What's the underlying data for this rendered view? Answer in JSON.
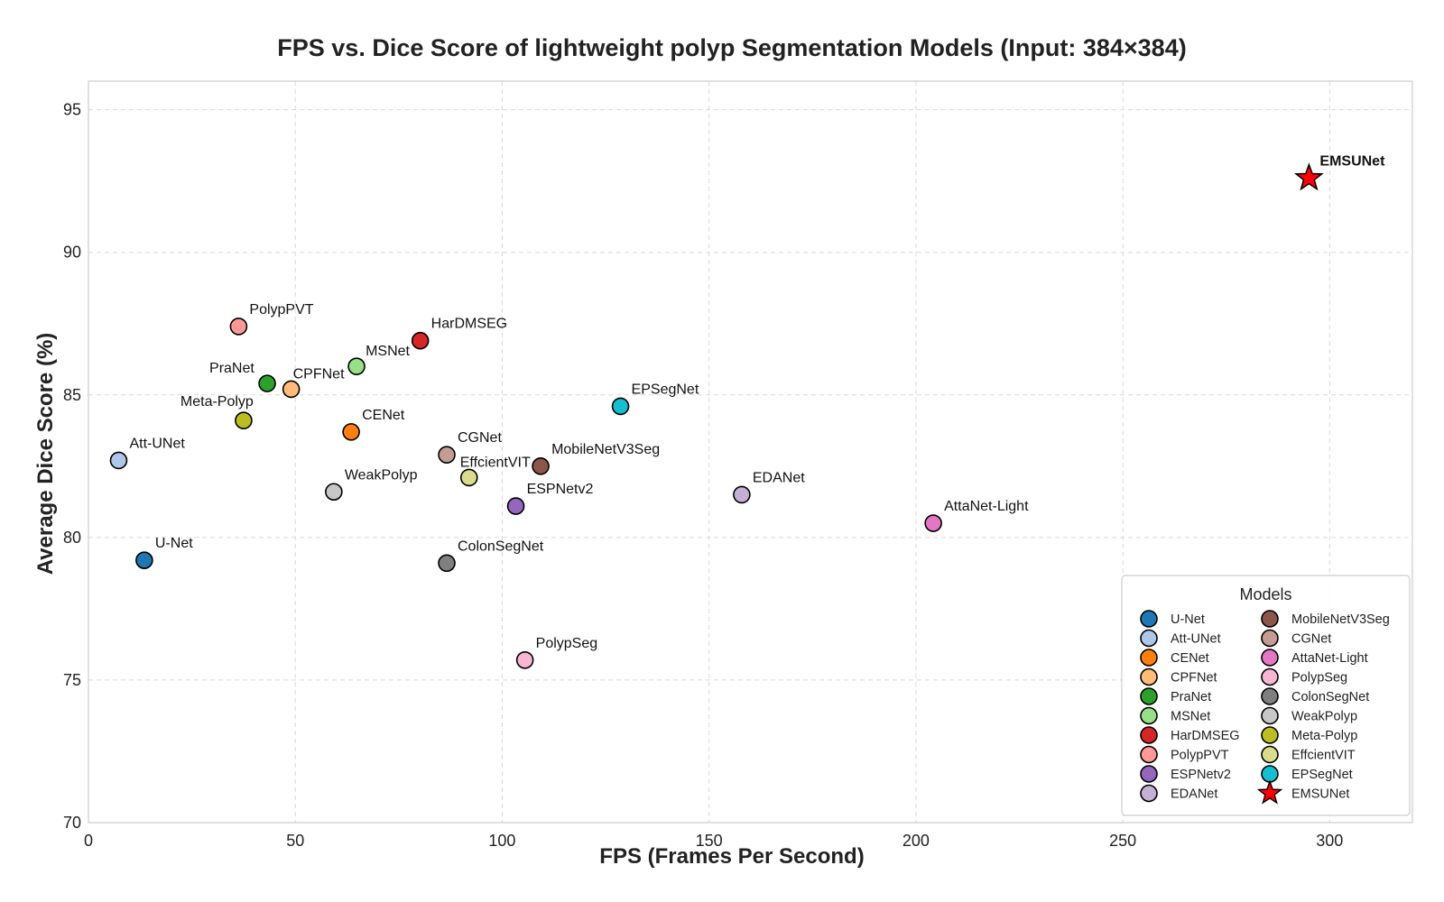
{
  "chart_data": {
    "type": "scatter",
    "title": "FPS vs. Dice Score of lightweight polyp Segmentation Models (Input: 384×384)",
    "xlabel": "FPS (Frames Per Second)",
    "ylabel": "Average Dice Score (%)",
    "xlim": [
      0,
      320
    ],
    "ylim": [
      70,
      96
    ],
    "xticks": [
      0,
      50,
      100,
      150,
      200,
      250,
      300
    ],
    "yticks": [
      70,
      75,
      80,
      85,
      90,
      95
    ],
    "grid": true,
    "legend": {
      "title": "Models",
      "position": "bottom-right",
      "columns": 2
    },
    "series": [
      {
        "name": "U-Net",
        "x": 13.5,
        "y": 79.2,
        "color": "#1f77b4",
        "marker": "circle"
      },
      {
        "name": "Att-UNet",
        "x": 7.3,
        "y": 82.7,
        "color": "#aec7e8",
        "marker": "circle"
      },
      {
        "name": "CENet",
        "x": 63.5,
        "y": 83.7,
        "color": "#ff7f0e",
        "marker": "circle"
      },
      {
        "name": "CPFNet",
        "x": 49.0,
        "y": 85.2,
        "color": "#ffbb78",
        "marker": "circle"
      },
      {
        "name": "PraNet",
        "x": 43.2,
        "y": 85.4,
        "color": "#2ca02c",
        "marker": "circle"
      },
      {
        "name": "MSNet",
        "x": 64.8,
        "y": 86.0,
        "color": "#98df8a",
        "marker": "circle"
      },
      {
        "name": "HarDMSEG",
        "x": 80.2,
        "y": 86.9,
        "color": "#d62728",
        "marker": "circle"
      },
      {
        "name": "PolypPVT",
        "x": 36.3,
        "y": 87.4,
        "color": "#ff9896",
        "marker": "circle"
      },
      {
        "name": "ESPNetv2",
        "x": 103.3,
        "y": 81.1,
        "color": "#9467bd",
        "marker": "circle"
      },
      {
        "name": "EDANet",
        "x": 157.9,
        "y": 81.5,
        "color": "#c5b0d5",
        "marker": "circle"
      },
      {
        "name": "MobileNetV3Seg",
        "x": 109.3,
        "y": 82.5,
        "color": "#8c564b",
        "marker": "circle"
      },
      {
        "name": "CGNet",
        "x": 86.6,
        "y": 82.9,
        "color": "#c49c94",
        "marker": "circle"
      },
      {
        "name": "AttaNet-Light",
        "x": 204.2,
        "y": 80.5,
        "color": "#e377c2",
        "marker": "circle"
      },
      {
        "name": "PolypSeg",
        "x": 105.5,
        "y": 75.7,
        "color": "#f7b6d2",
        "marker": "circle"
      },
      {
        "name": "ColonSegNet",
        "x": 86.6,
        "y": 79.1,
        "color": "#7f7f7f",
        "marker": "circle"
      },
      {
        "name": "WeakPolyp",
        "x": 59.3,
        "y": 81.6,
        "color": "#c7c7c7",
        "marker": "circle"
      },
      {
        "name": "Meta-Polyp",
        "x": 37.5,
        "y": 84.1,
        "color": "#bcbd22",
        "marker": "circle"
      },
      {
        "name": "EffcientVIT",
        "x": 92.0,
        "y": 82.1,
        "color": "#dbdb8d",
        "marker": "circle"
      },
      {
        "name": "EPSegNet",
        "x": 128.6,
        "y": 84.6,
        "color": "#17becf",
        "marker": "circle"
      },
      {
        "name": "EMSUNet",
        "x": 295.0,
        "y": 92.6,
        "color": "#ff0000",
        "marker": "star",
        "bold_label": true
      }
    ]
  }
}
